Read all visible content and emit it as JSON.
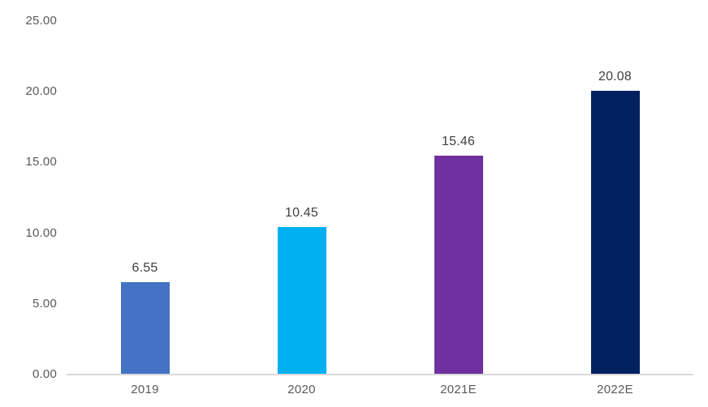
{
  "chart_data": {
    "type": "bar",
    "title": "",
    "xlabel": "",
    "ylabel": "",
    "categories": [
      "2019",
      "2020",
      "2021E",
      "2022E"
    ],
    "values": [
      6.55,
      10.45,
      15.46,
      20.08
    ],
    "value_labels": [
      "6.55",
      "10.45",
      "15.46",
      "20.08"
    ],
    "bar_colors": [
      "#4472C4",
      "#00B0F0",
      "#7030A0",
      "#002060"
    ],
    "ylim": [
      0,
      25
    ],
    "y_tick_values": [
      0,
      5,
      10,
      15,
      20,
      25
    ],
    "y_tick_labels": [
      "0.00",
      "5.00",
      "10.00",
      "15.00",
      "20.00",
      "25.00"
    ],
    "grid": false,
    "legend": false,
    "data_labels_position": "above-bar"
  },
  "colors": {
    "background": "#FFFFFF",
    "axis_line": "#D9D9D9",
    "tick_text": "#595959",
    "value_text": "#404040"
  }
}
